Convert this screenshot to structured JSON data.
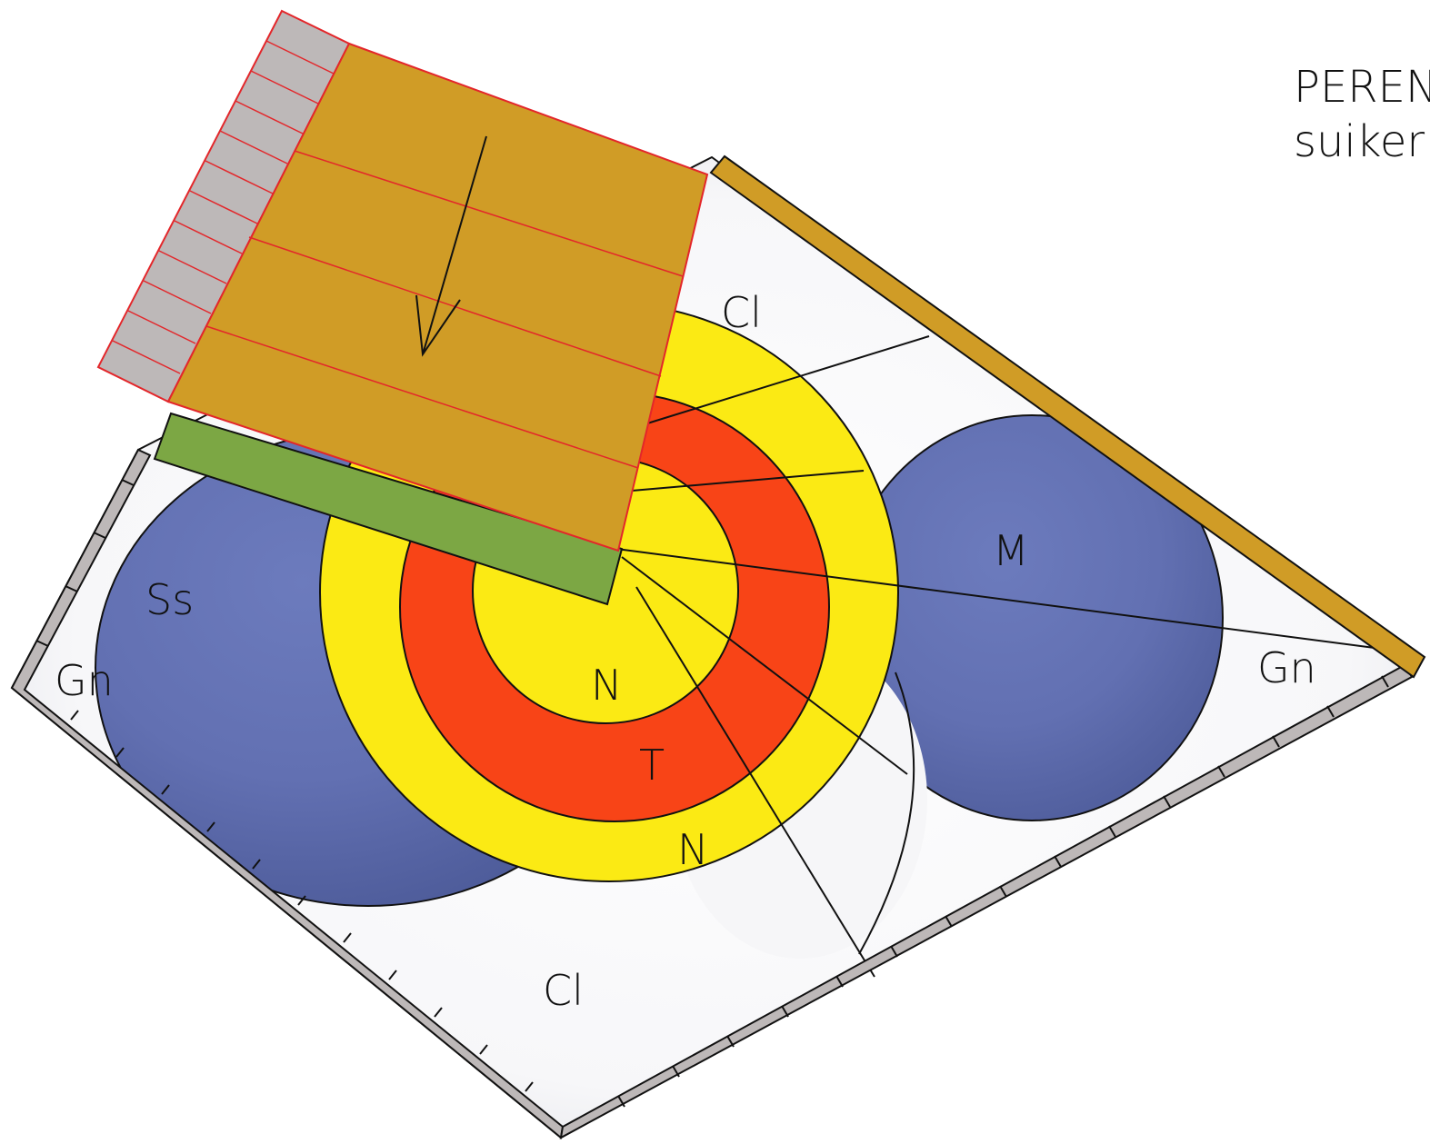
{
  "title": {
    "line1": "PEREN",
    "line2": "suiker"
  },
  "labels": {
    "cl_top": "Cl",
    "cl_bottom": "Cl",
    "ss": "Ss",
    "gn_left": "Gn",
    "gn_right": "Gn",
    "m": "M",
    "n_center": "N",
    "t": "T",
    "n_outer": "N"
  },
  "colors": {
    "blue": "#5a68a6",
    "yellow": "#fbea14",
    "red": "#f84417",
    "green": "#7ca744",
    "ochre": "#d09c26",
    "grey": "#bdb8b8",
    "outline_red": "#e3262a"
  }
}
